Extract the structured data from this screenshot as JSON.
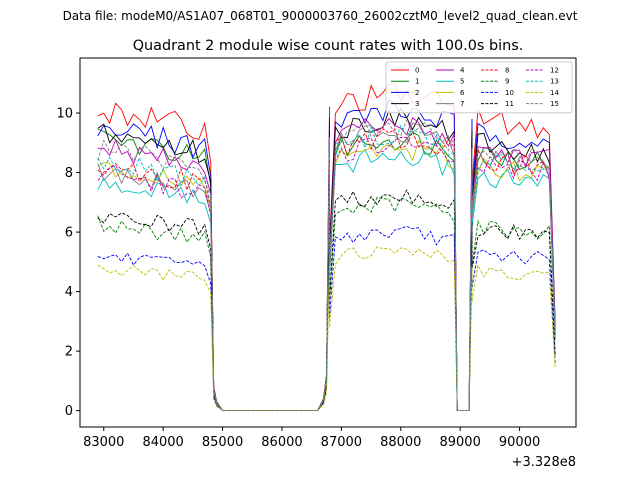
{
  "chart_data": {
    "type": "line",
    "suptitle": "Data file: modeM0/AS1A07_068T01_9000003760_26002cztM0_level2_quad_clean.evt",
    "title": "Quadrant 2 module wise count rates with 100.0s bins.",
    "xlabel": "",
    "ylabel": "",
    "x_offset_label": "+3.328e8",
    "xlim": [
      82600,
      90950
    ],
    "ylim": [
      -0.55,
      11.85
    ],
    "xticks": [
      83000,
      84000,
      85000,
      86000,
      87000,
      88000,
      89000,
      90000
    ],
    "xtick_labels": [
      "83000",
      "84000",
      "85000",
      "86000",
      "87000",
      "88000",
      "89000",
      "90000"
    ],
    "yticks": [
      0,
      2,
      4,
      6,
      8,
      10
    ],
    "ytick_labels": [
      "0",
      "2",
      "4",
      "6",
      "8",
      "10"
    ],
    "legend_location": "upper right",
    "legend_columns": 4,
    "grid": false,
    "gaps": [
      {
        "from": 84800,
        "to": 86700
      },
      {
        "from": 88950,
        "to": 89150
      }
    ],
    "segments": [
      {
        "x_start": 82900,
        "x_end": 84700
      },
      {
        "x_start": 86800,
        "x_end": 88900
      },
      {
        "x_start": 89200,
        "x_end": 90500
      }
    ],
    "edge_points": [
      {
        "x": 84800,
        "ratio": 0.82
      },
      {
        "x": 84850,
        "ratio": 0.08
      },
      {
        "x": 84900,
        "ratio": 0.03
      },
      {
        "x": 86700,
        "ratio": 0.04
      },
      {
        "x": 86750,
        "ratio": 0.12
      },
      {
        "x": 86800,
        "ratio": 0.55
      },
      {
        "x": 88950,
        "ratio": 0.0
      },
      {
        "x": 89150,
        "ratio": 0.0
      },
      {
        "x": 89200,
        "ratio": 0.78
      },
      {
        "x": 90600,
        "ratio": 0.3
      }
    ],
    "series": [
      {
        "name": "0",
        "color": "#ff0000",
        "dash": "solid",
        "levels": [
          10.2,
          10.1,
          9.8
        ]
      },
      {
        "name": "1",
        "color": "#008000",
        "dash": "solid",
        "levels": [
          9.2,
          8.7,
          8.7
        ]
      },
      {
        "name": "2",
        "color": "#0000ff",
        "dash": "solid",
        "levels": [
          9.6,
          9.6,
          9.4
        ]
      },
      {
        "name": "3",
        "color": "#000000",
        "dash": "solid",
        "levels": [
          9.4,
          9.3,
          9.0
        ]
      },
      {
        "name": "4",
        "color": "#bf00bf",
        "dash": "solid",
        "levels": [
          8.9,
          9.1,
          8.8
        ]
      },
      {
        "name": "5",
        "color": "#00bfbf",
        "dash": "solid",
        "levels": [
          7.7,
          8.1,
          7.9
        ]
      },
      {
        "name": "6",
        "color": "#bfbf00",
        "dash": "solid",
        "levels": [
          8.3,
          8.4,
          8.3
        ]
      },
      {
        "name": "7",
        "color": "#808080",
        "dash": "solid",
        "levels": [
          8.1,
          8.9,
          8.5
        ]
      },
      {
        "name": "8",
        "color": "#ff0000",
        "dash": "dashed",
        "levels": [
          8.3,
          8.7,
          8.5
        ]
      },
      {
        "name": "9",
        "color": "#008000",
        "dash": "dashed",
        "levels": [
          6.3,
          6.6,
          6.2
        ]
      },
      {
        "name": "10",
        "color": "#0000ff",
        "dash": "dashed",
        "levels": [
          5.2,
          5.7,
          5.3
        ]
      },
      {
        "name": "11",
        "color": "#000000",
        "dash": "dashed",
        "levels": [
          6.6,
          6.9,
          6.1
        ]
      },
      {
        "name": "12",
        "color": "#bf00bf",
        "dash": "dashed",
        "levels": [
          8.0,
          8.5,
          8.3
        ]
      },
      {
        "name": "13",
        "color": "#00bfbf",
        "dash": "dashed",
        "levels": [
          8.4,
          8.8,
          8.4
        ]
      },
      {
        "name": "14",
        "color": "#bfbf00",
        "dash": "dashed",
        "levels": [
          4.8,
          5.1,
          4.7
        ]
      },
      {
        "name": "15",
        "color": "#808080",
        "dash": "dashed",
        "levels": [
          8.8,
          9.0,
          8.7
        ]
      }
    ]
  }
}
